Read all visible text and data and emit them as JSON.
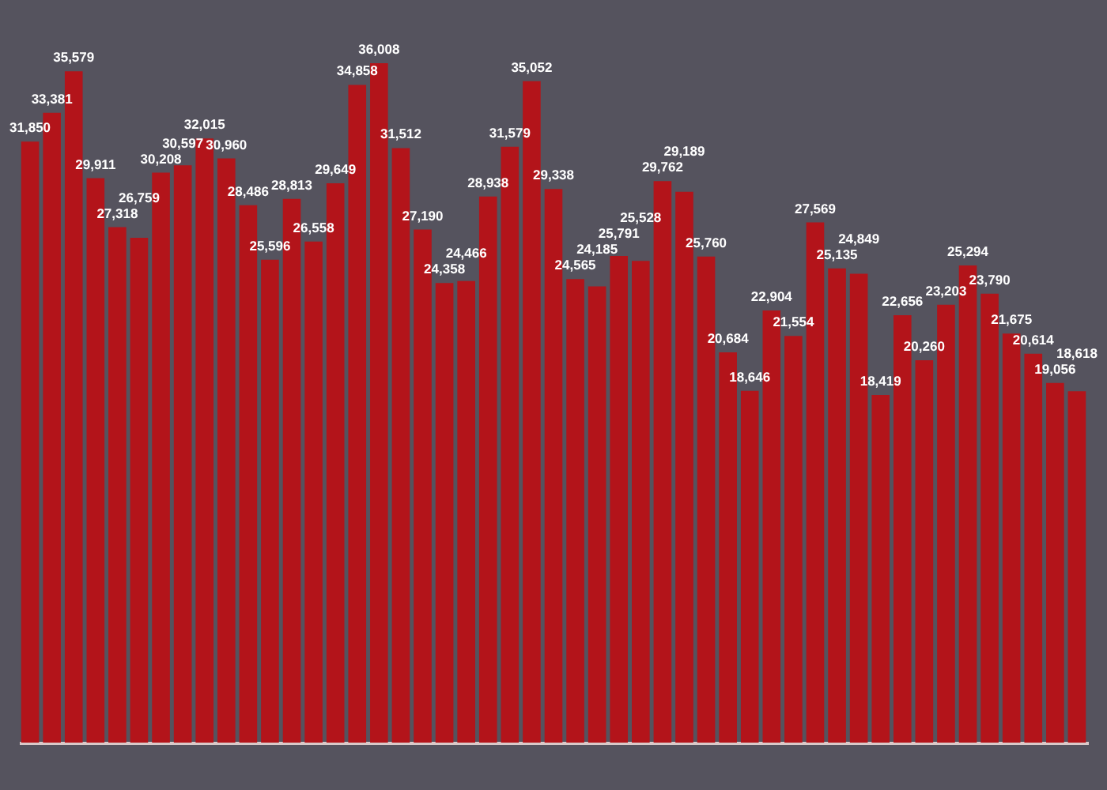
{
  "chart_data": {
    "type": "bar",
    "categories": [
      null,
      null,
      null,
      null,
      null,
      null,
      null,
      null,
      null,
      null,
      null,
      null,
      null,
      null,
      null,
      null,
      null,
      null,
      null,
      null,
      null,
      null,
      null,
      null,
      null,
      null,
      null,
      null,
      null,
      null,
      null,
      null,
      null,
      null,
      null,
      null,
      null,
      null,
      null,
      null,
      null,
      null,
      null,
      null,
      null,
      null,
      null,
      null,
      null
    ],
    "values": [
      31850,
      33381,
      35579,
      29911,
      27318,
      26759,
      30208,
      30597,
      32015,
      30960,
      28486,
      25596,
      28813,
      26558,
      29649,
      34858,
      36008,
      31512,
      27190,
      24358,
      24466,
      28938,
      31579,
      35052,
      29338,
      24565,
      24185,
      25791,
      25528,
      29762,
      29189,
      25760,
      20684,
      18646,
      22904,
      21554,
      27569,
      25135,
      24849,
      18419,
      22656,
      20260,
      23203,
      25294,
      23790,
      21675,
      20614,
      19056,
      18618
    ],
    "value_labels": [
      "31,850",
      "33,381",
      "35,579",
      "29,911",
      "27,318",
      "26,759",
      "30,208",
      "30,597",
      "32,015",
      "30,960",
      "28,486",
      "25,596",
      "28,813",
      "26,558",
      "29,649",
      "34,858",
      "36,008",
      "31,512",
      "27,190",
      "24,358",
      "24,466",
      "28,938",
      "31,579",
      "35,052",
      "29,338",
      "24,565",
      "24,185",
      "25,791",
      "25,528",
      "29,762",
      "29,189",
      "25,760",
      "20,684",
      "18,646",
      "22,904",
      "21,554",
      "27,569",
      "25,135",
      "24,849",
      "18,419",
      "22,656",
      "20,260",
      "23,203",
      "25,294",
      "23,790",
      "21,675",
      "20,614",
      "19,056",
      "18,618"
    ],
    "color": "#b3141a"
  }
}
